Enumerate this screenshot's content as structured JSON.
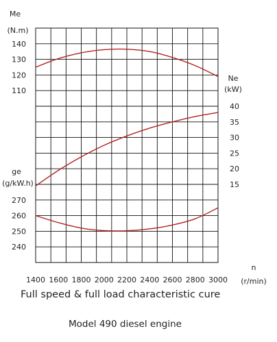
{
  "chart_data": {
    "type": "line",
    "title": "Full speed & full load characteristic cure",
    "subtitle": "Model 490 diesel engine",
    "xlabel": {
      "name": "n",
      "unit": "(r/min)"
    },
    "xlim": [
      1400,
      3000
    ],
    "x_ticks": [
      "1400",
      "1600",
      "1800",
      "2000",
      "2200",
      "2400",
      "2600",
      "2800",
      "3000"
    ],
    "grid": true,
    "axes": {
      "Me": {
        "name": "Me",
        "unit": "(N.m)",
        "side": "left",
        "ticks": [
          "140",
          "130",
          "120",
          "110"
        ]
      },
      "Ne": {
        "name": "Ne",
        "unit": "(kW)",
        "side": "right",
        "ticks": [
          "40",
          "35",
          "30",
          "25",
          "20",
          "15"
        ]
      },
      "ge": {
        "name": "ge",
        "unit": "(g/kW.h)",
        "side": "left",
        "ticks": [
          "270",
          "260",
          "250",
          "240"
        ]
      }
    },
    "series": [
      {
        "name": "Me",
        "axis": "Me",
        "color": "#b22222",
        "x": [
          1400,
          1600,
          1800,
          2000,
          2200,
          2400,
          2600,
          2800,
          3000
        ],
        "y": [
          125,
          130.5,
          134.2,
          136.2,
          136.5,
          135,
          131.2,
          126,
          119
        ]
      },
      {
        "name": "Ne",
        "axis": "Ne",
        "color": "#b22222",
        "x": [
          1400,
          1600,
          1800,
          2000,
          2200,
          2400,
          2600,
          2800,
          3000
        ],
        "y": [
          14.5,
          19.5,
          23.8,
          27.5,
          30.5,
          33,
          35,
          36.7,
          38
        ]
      },
      {
        "name": "ge",
        "axis": "ge",
        "color": "#b22222",
        "x": [
          1400,
          1600,
          1800,
          2000,
          2200,
          2400,
          2600,
          2800,
          3000
        ],
        "y": [
          260,
          255.5,
          252,
          250.4,
          250.3,
          251.5,
          254,
          258,
          265
        ]
      }
    ]
  }
}
